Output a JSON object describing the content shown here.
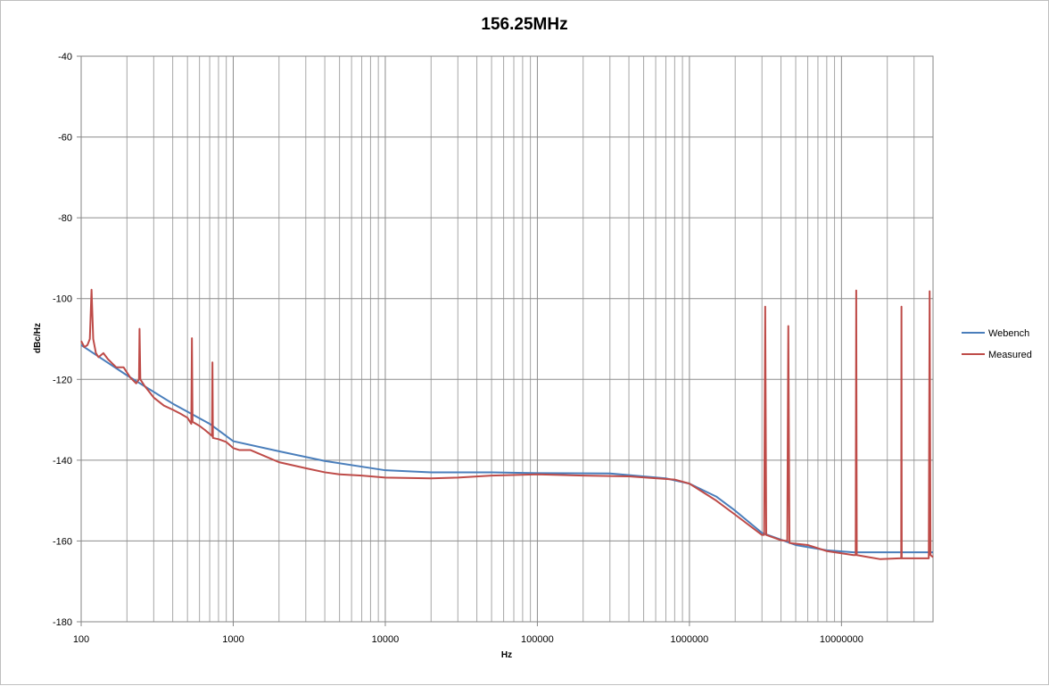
{
  "chart_data": {
    "type": "line",
    "title": "156.25MHz",
    "xlabel": "Hz",
    "ylabel": "dBc/Hz",
    "x_scale": "log",
    "xlim": [
      100,
      40000000
    ],
    "ylim": [
      -180,
      -40
    ],
    "x_ticks": [
      100,
      1000,
      10000,
      100000,
      1000000,
      10000000
    ],
    "x_tick_labels": [
      "100",
      "1000",
      "10000",
      "100000",
      "1000000",
      "10000000"
    ],
    "y_ticks": [
      -40,
      -60,
      -80,
      -100,
      -120,
      -140,
      -160,
      -180
    ],
    "y_tick_labels": [
      "-40",
      "-60",
      "-80",
      "-100",
      "-120",
      "-140",
      "-160",
      "-180"
    ],
    "grid": true,
    "legend_position": "right",
    "series": [
      {
        "name": "Webench",
        "color": "#4a7ebb",
        "points": [
          [
            100,
            -111.5
          ],
          [
            200,
            -119
          ],
          [
            400,
            -126
          ],
          [
            700,
            -131
          ],
          [
            1000,
            -135.3
          ],
          [
            2000,
            -137.8
          ],
          [
            4000,
            -140.2
          ],
          [
            10000,
            -142.5
          ],
          [
            20000,
            -143
          ],
          [
            50000,
            -143
          ],
          [
            100000,
            -143.2
          ],
          [
            300000,
            -143.3
          ],
          [
            700000,
            -144.5
          ],
          [
            1000000,
            -145.8
          ],
          [
            1500000,
            -149
          ],
          [
            2000000,
            -152.5
          ],
          [
            3000000,
            -158
          ],
          [
            5000000,
            -161
          ],
          [
            8000000,
            -162.3
          ],
          [
            12000000,
            -162.8
          ],
          [
            40000000,
            -162.8
          ]
        ]
      },
      {
        "name": "Measured",
        "color": "#be4b48",
        "points": [
          [
            100,
            -110.5
          ],
          [
            105,
            -112
          ],
          [
            110,
            -111.5
          ],
          [
            114,
            -110
          ],
          [
            117,
            -97.8
          ],
          [
            120,
            -110
          ],
          [
            125,
            -113.5
          ],
          [
            130,
            -114.5
          ],
          [
            140,
            -113.5
          ],
          [
            150,
            -115
          ],
          [
            170,
            -117
          ],
          [
            190,
            -117
          ],
          [
            210,
            -119.5
          ],
          [
            230,
            -121
          ],
          [
            240,
            -120
          ],
          [
            242,
            -107.5
          ],
          [
            245,
            -120
          ],
          [
            260,
            -121.5
          ],
          [
            300,
            -124.5
          ],
          [
            350,
            -126.5
          ],
          [
            400,
            -127.5
          ],
          [
            450,
            -128.5
          ],
          [
            500,
            -129.5
          ],
          [
            530,
            -131
          ],
          [
            535,
            -109.8
          ],
          [
            540,
            -130.5
          ],
          [
            600,
            -131.5
          ],
          [
            650,
            -132.5
          ],
          [
            700,
            -133.5
          ],
          [
            725,
            -134
          ],
          [
            730,
            -115.8
          ],
          [
            735,
            -134.5
          ],
          [
            800,
            -134.8
          ],
          [
            900,
            -135.5
          ],
          [
            1000,
            -137
          ],
          [
            1100,
            -137.5
          ],
          [
            1300,
            -137.5
          ],
          [
            1500,
            -138.5
          ],
          [
            2000,
            -140.5
          ],
          [
            3000,
            -142
          ],
          [
            4000,
            -143
          ],
          [
            5000,
            -143.5
          ],
          [
            7000,
            -143.8
          ],
          [
            10000,
            -144.3
          ],
          [
            20000,
            -144.5
          ],
          [
            30000,
            -144.3
          ],
          [
            50000,
            -143.8
          ],
          [
            100000,
            -143.5
          ],
          [
            200000,
            -143.8
          ],
          [
            400000,
            -144
          ],
          [
            800000,
            -144.8
          ],
          [
            1000000,
            -145.8
          ],
          [
            1500000,
            -150
          ],
          [
            2000000,
            -153.5
          ],
          [
            3000000,
            -158.5
          ],
          [
            3100000,
            -158.5
          ],
          [
            3150000,
            -102
          ],
          [
            3200000,
            -158.5
          ],
          [
            4000000,
            -159.8
          ],
          [
            4400000,
            -160
          ],
          [
            4470000,
            -106.8
          ],
          [
            4550000,
            -160.5
          ],
          [
            6000000,
            -161
          ],
          [
            8000000,
            -162.5
          ],
          [
            12000000,
            -163.5
          ],
          [
            12400000,
            -163.5
          ],
          [
            12500000,
            -98
          ],
          [
            12600000,
            -163.5
          ],
          [
            15000000,
            -164
          ],
          [
            18000000,
            -164.5
          ],
          [
            24000000,
            -164.3
          ],
          [
            24700000,
            -164.3
          ],
          [
            24800000,
            -102
          ],
          [
            24900000,
            -164.3
          ],
          [
            30000000,
            -164.3
          ],
          [
            37500000,
            -164.3
          ],
          [
            38000000,
            -98.2
          ],
          [
            38500000,
            -163.5
          ],
          [
            40000000,
            -164
          ]
        ]
      }
    ]
  }
}
